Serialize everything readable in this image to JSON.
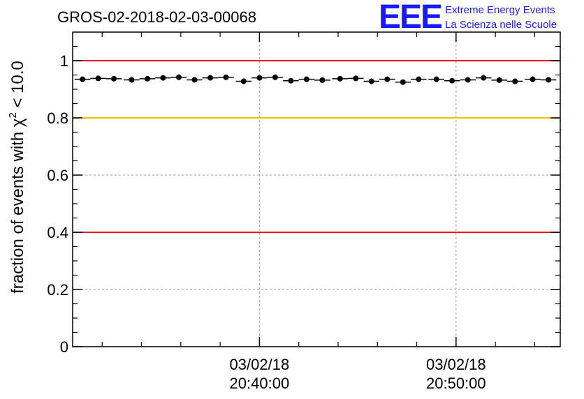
{
  "chart_data": {
    "type": "scatter",
    "title": "GROS-02-2018-02-03-00068",
    "ylabel_prefix": "fraction of events with χ",
    "ylabel_sup": "2",
    "ylabel_suffix": " < 10.0",
    "ylim": [
      0,
      1.1
    ],
    "y_ticks": [
      0,
      0.2,
      0.4,
      0.6,
      0.8,
      1
    ],
    "y_tick_labels": [
      "0",
      "0.2",
      "0.4",
      "0.6",
      "0.8",
      "1"
    ],
    "x_range_minutes": [
      30.5,
      55.3
    ],
    "x_ticks_labeled": [
      {
        "minute": 40,
        "date": "03/02/18",
        "time": "20:40:00"
      },
      {
        "minute": 50,
        "date": "03/02/18",
        "time": "20:50:00"
      }
    ],
    "reference_lines": [
      {
        "y": 1.0,
        "color": "#e8141c"
      },
      {
        "y": 0.8,
        "color": "#ffc000"
      },
      {
        "y": 0.4,
        "color": "#e8141c"
      }
    ],
    "grid": true,
    "point_color": "#000000",
    "bin_width_minutes": 0.8,
    "x": [
      31.0,
      31.8,
      32.6,
      33.5,
      34.3,
      35.1,
      35.9,
      36.7,
      37.5,
      38.3,
      39.2,
      40.0,
      40.8,
      41.6,
      42.4,
      43.2,
      44.1,
      44.9,
      45.7,
      46.5,
      47.3,
      48.1,
      49.0,
      49.8,
      50.6,
      51.4,
      52.2,
      53.0,
      53.9,
      54.7
    ],
    "y": [
      0.935,
      0.938,
      0.937,
      0.933,
      0.937,
      0.94,
      0.942,
      0.933,
      0.94,
      0.942,
      0.928,
      0.94,
      0.942,
      0.93,
      0.935,
      0.932,
      0.937,
      0.938,
      0.928,
      0.935,
      0.925,
      0.935,
      0.935,
      0.93,
      0.933,
      0.94,
      0.932,
      0.928,
      0.935,
      0.933
    ]
  },
  "logo": {
    "mark": "EEE",
    "line1": "Extreme Energy Events",
    "line2": "La Scienza nelle Scuole",
    "color": "#1a1aff"
  }
}
